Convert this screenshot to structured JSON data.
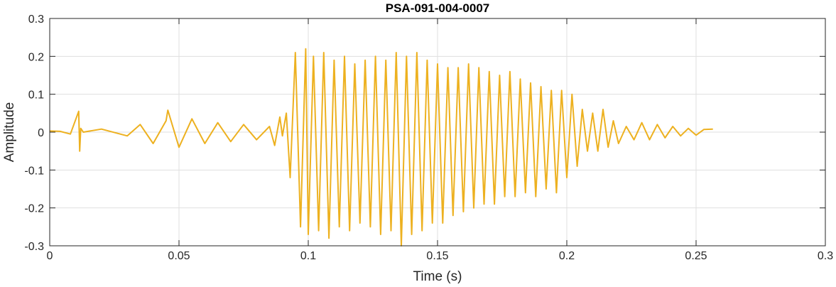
{
  "chart_data": {
    "type": "line",
    "title": "PSA-091-004-0007",
    "xlabel": "Time (s)",
    "ylabel": "Amplitude",
    "xlim": [
      0,
      0.3
    ],
    "ylim": [
      -0.3,
      0.3
    ],
    "xticks": [
      0,
      0.05,
      0.1,
      0.15,
      0.2,
      0.25,
      0.3
    ],
    "xtick_labels": [
      "0",
      "0.05",
      "0.1",
      "0.15",
      "0.2",
      "0.25",
      "0.3"
    ],
    "yticks": [
      -0.3,
      -0.2,
      -0.1,
      0,
      0.1,
      0.2,
      0.3
    ],
    "ytick_labels": [
      "-0.3",
      "-0.2",
      "-0.1",
      "0",
      "0.1",
      "0.2",
      "0.3"
    ],
    "grid": true,
    "line_color": "#EDB120",
    "series": [
      {
        "x": [
          0,
          0.004,
          0.008,
          0.0112,
          0.0116,
          0.012,
          0.013,
          0.02,
          0.03,
          0.035,
          0.04,
          0.045,
          0.0457,
          0.05,
          0.055,
          0.06,
          0.065,
          0.07,
          0.075,
          0.08,
          0.085,
          0.087,
          0.089,
          0.09,
          0.0915,
          0.093,
          0.095,
          0.097,
          0.099,
          0.1,
          0.102,
          0.104,
          0.106,
          0.108,
          0.11,
          0.112,
          0.114,
          0.116,
          0.118,
          0.12,
          0.122,
          0.124,
          0.126,
          0.128,
          0.13,
          0.132,
          0.134,
          0.136,
          0.138,
          0.14,
          0.142,
          0.144,
          0.146,
          0.148,
          0.15,
          0.152,
          0.154,
          0.156,
          0.158,
          0.16,
          0.162,
          0.164,
          0.166,
          0.168,
          0.17,
          0.172,
          0.174,
          0.176,
          0.178,
          0.18,
          0.182,
          0.184,
          0.186,
          0.188,
          0.19,
          0.192,
          0.194,
          0.196,
          0.198,
          0.2,
          0.202,
          0.204,
          0.206,
          0.208,
          0.21,
          0.212,
          0.214,
          0.216,
          0.218,
          0.22,
          0.223,
          0.226,
          0.229,
          0.232,
          0.235,
          0.238,
          0.241,
          0.244,
          0.247,
          0.25,
          0.253,
          0.2565
        ],
        "y": [
          0.003,
          0.002,
          -0.005,
          0.055,
          -0.05,
          0.01,
          0.0,
          0.008,
          -0.01,
          0.02,
          -0.03,
          0.03,
          0.058,
          -0.04,
          0.035,
          -0.03,
          0.025,
          -0.025,
          0.02,
          -0.02,
          0.015,
          -0.035,
          0.04,
          -0.01,
          0.05,
          -0.12,
          0.21,
          -0.25,
          0.22,
          -0.27,
          0.2,
          -0.26,
          0.21,
          -0.28,
          0.19,
          -0.25,
          0.2,
          -0.26,
          0.18,
          -0.24,
          0.19,
          -0.25,
          0.2,
          -0.27,
          0.19,
          -0.26,
          0.21,
          -0.3,
          0.2,
          -0.27,
          0.21,
          -0.26,
          0.19,
          -0.24,
          0.18,
          -0.24,
          0.17,
          -0.22,
          0.17,
          -0.21,
          0.18,
          -0.2,
          0.17,
          -0.19,
          0.16,
          -0.19,
          0.15,
          -0.17,
          0.16,
          -0.17,
          0.14,
          -0.16,
          0.13,
          -0.17,
          0.12,
          -0.15,
          0.11,
          -0.16,
          0.11,
          -0.12,
          0.1,
          -0.09,
          0.06,
          -0.05,
          0.05,
          -0.05,
          0.06,
          -0.04,
          0.03,
          -0.03,
          0.015,
          -0.02,
          0.025,
          -0.02,
          0.02,
          -0.015,
          0.015,
          -0.01,
          0.01,
          -0.008,
          0.007,
          0.008
        ]
      }
    ]
  }
}
